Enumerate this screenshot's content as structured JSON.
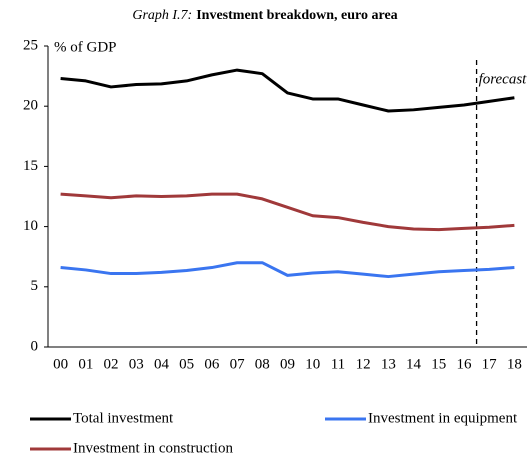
{
  "chart_data": {
    "type": "line",
    "title_label": "Graph I.7:",
    "title": "Investment  breakdown, euro area",
    "y_label": "% of GDP",
    "annotation": {
      "text": "forecast",
      "between": [
        "16",
        "17"
      ]
    },
    "categories": [
      "00",
      "01",
      "02",
      "03",
      "04",
      "05",
      "06",
      "07",
      "08",
      "09",
      "10",
      "11",
      "12",
      "13",
      "14",
      "15",
      "16",
      "17",
      "18"
    ],
    "series": [
      {
        "name": "Total investment",
        "color": "#000000",
        "values": [
          22.3,
          22.1,
          21.6,
          21.8,
          21.85,
          22.1,
          22.6,
          23.0,
          22.7,
          21.1,
          20.6,
          20.6,
          20.1,
          19.6,
          19.7,
          19.9,
          20.1,
          20.4,
          20.7
        ]
      },
      {
        "name": "Investment in equipment",
        "color": "#3a75f0",
        "values": [
          6.6,
          6.4,
          6.1,
          6.1,
          6.2,
          6.35,
          6.6,
          7.0,
          7.0,
          5.95,
          6.15,
          6.25,
          6.05,
          5.85,
          6.05,
          6.25,
          6.35,
          6.45,
          6.6
        ]
      },
      {
        "name": "Investment in construction",
        "color": "#a0393a",
        "values": [
          12.7,
          12.55,
          12.4,
          12.55,
          12.5,
          12.55,
          12.7,
          12.7,
          12.3,
          11.6,
          10.9,
          10.75,
          10.35,
          10.0,
          9.8,
          9.75,
          9.85,
          9.95,
          10.1
        ]
      }
    ],
    "ylim": [
      0,
      25
    ],
    "yticks": [
      0,
      5,
      10,
      15,
      20,
      25
    ],
    "grid": false
  }
}
